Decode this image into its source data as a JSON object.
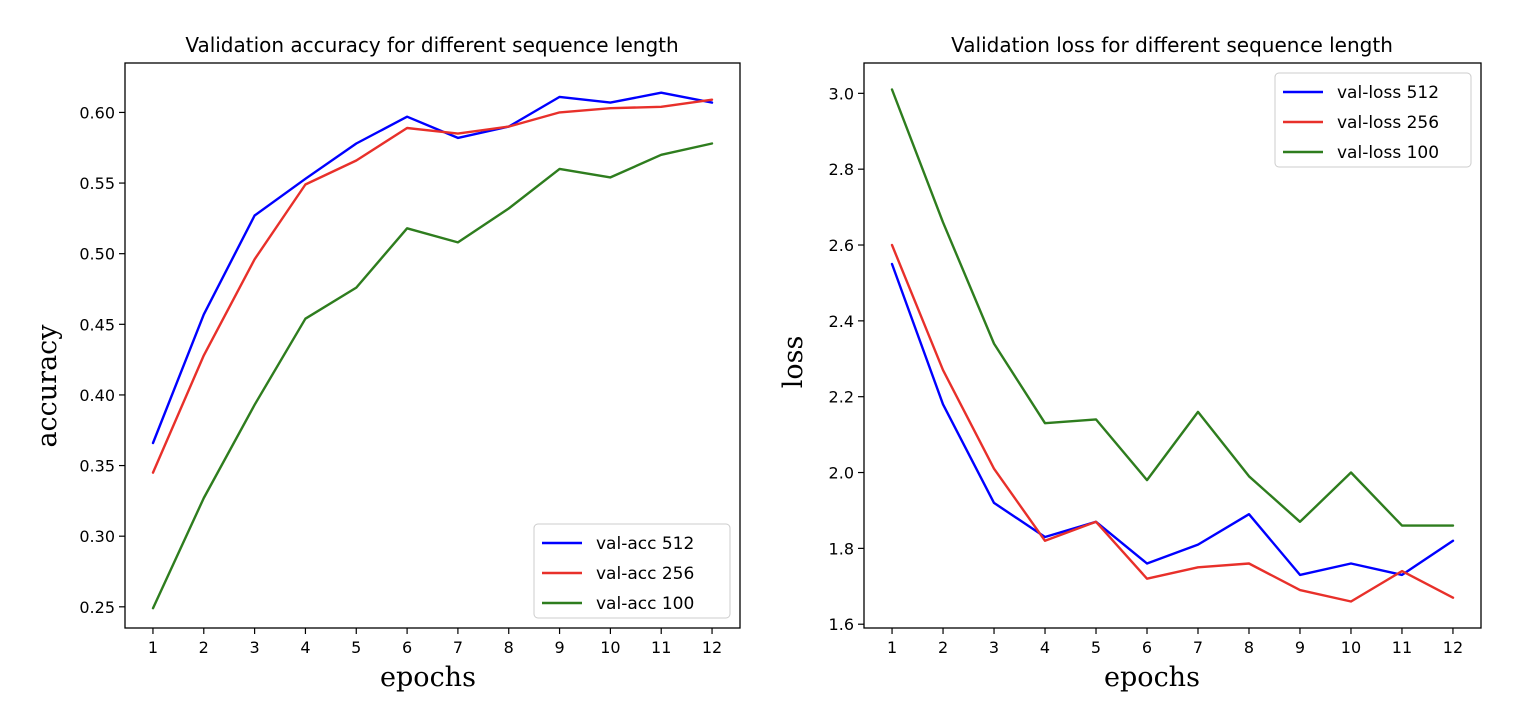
{
  "chart_data": [
    {
      "type": "line",
      "title": "Validation accuracy for different sequence length",
      "xlabel": "epochs",
      "ylabel": "accuracy",
      "x": [
        1,
        2,
        3,
        4,
        5,
        6,
        7,
        8,
        9,
        10,
        11,
        12
      ],
      "ylim": [
        0.235,
        0.635
      ],
      "xlim": [
        0.45,
        12.55
      ],
      "yticks": [
        0.25,
        0.3,
        0.35,
        0.4,
        0.45,
        0.5,
        0.55,
        0.6
      ],
      "ytick_labels": [
        "0.25",
        "0.30",
        "0.35",
        "0.40",
        "0.45",
        "0.50",
        "0.55",
        "0.60"
      ],
      "legend_position": "lower-right",
      "grid": false,
      "series": [
        {
          "name": "val-acc 512",
          "color": "#0000ff",
          "values": [
            0.366,
            0.457,
            0.527,
            0.553,
            0.578,
            0.597,
            0.582,
            0.59,
            0.611,
            0.607,
            0.614,
            0.607
          ]
        },
        {
          "name": "val-acc 256",
          "color": "#e8302a",
          "values": [
            0.345,
            0.428,
            0.496,
            0.549,
            0.566,
            0.589,
            0.585,
            0.59,
            0.6,
            0.603,
            0.604,
            0.609
          ]
        },
        {
          "name": "val-acc 100",
          "color": "#2e7d1e",
          "values": [
            0.249,
            0.327,
            0.393,
            0.454,
            0.476,
            0.518,
            0.508,
            0.532,
            0.56,
            0.554,
            0.57,
            0.578
          ]
        }
      ]
    },
    {
      "type": "line",
      "title": "Validation loss for different sequence length",
      "xlabel": "epochs",
      "ylabel": "loss",
      "x": [
        1,
        2,
        3,
        4,
        5,
        6,
        7,
        8,
        9,
        10,
        11,
        12
      ],
      "ylim": [
        1.59,
        3.08
      ],
      "xlim": [
        0.45,
        12.55
      ],
      "yticks": [
        1.6,
        1.8,
        2.0,
        2.2,
        2.4,
        2.6,
        2.8,
        3.0
      ],
      "ytick_labels": [
        "1.6",
        "1.8",
        "2.0",
        "2.2",
        "2.4",
        "2.6",
        "2.8",
        "3.0"
      ],
      "legend_position": "top-right",
      "grid": false,
      "series": [
        {
          "name": "val-loss 512",
          "color": "#0000ff",
          "values": [
            2.55,
            2.18,
            1.92,
            1.83,
            1.87,
            1.76,
            1.81,
            1.89,
            1.73,
            1.76,
            1.73,
            1.82
          ]
        },
        {
          "name": "val-loss 256",
          "color": "#e8302a",
          "values": [
            2.6,
            2.27,
            2.01,
            1.82,
            1.87,
            1.72,
            1.75,
            1.76,
            1.69,
            1.66,
            1.74,
            1.67
          ]
        },
        {
          "name": "val-loss 100",
          "color": "#2e7d1e",
          "values": [
            3.01,
            2.66,
            2.34,
            2.13,
            2.14,
            1.98,
            2.16,
            1.99,
            1.87,
            2.0,
            1.86,
            1.86
          ]
        }
      ]
    }
  ]
}
